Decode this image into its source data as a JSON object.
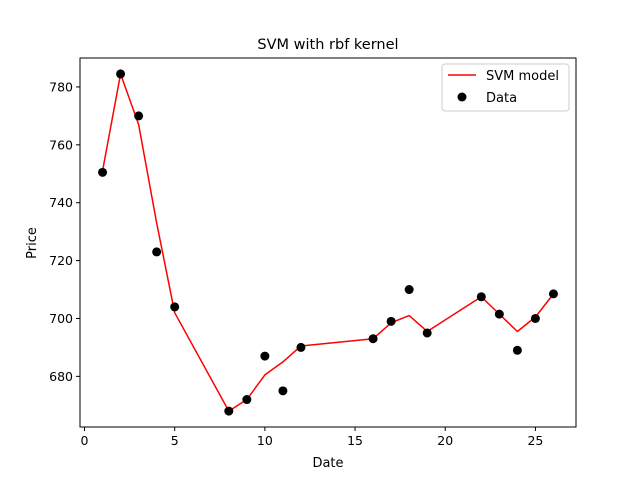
{
  "chart_data": {
    "type": "scatter+line",
    "title": "SVM with rbf kernel",
    "xlabel": "Date",
    "ylabel": "Price",
    "xlim": [
      -0.25,
      27.25
    ],
    "ylim": [
      662.5,
      790
    ],
    "xticks": [
      0,
      5,
      10,
      15,
      20,
      25
    ],
    "yticks": [
      680,
      700,
      720,
      740,
      760,
      780
    ],
    "grid": false,
    "legend_position": "top-right",
    "colors": {
      "model": "#ff0000",
      "data": "#000000"
    },
    "series": [
      {
        "name": "SVM model",
        "kind": "line",
        "x": [
          1,
          2,
          3,
          4,
          5,
          8,
          9,
          10,
          11,
          12,
          16,
          17,
          18,
          19,
          22,
          23,
          24,
          25,
          26
        ],
        "y": [
          751,
          784.5,
          767,
          733,
          702,
          668,
          672,
          680.5,
          685,
          690.5,
          693,
          698.5,
          701,
          695.5,
          707.5,
          701.5,
          695.5,
          700.5,
          708.5
        ]
      },
      {
        "name": "Data",
        "kind": "scatter",
        "x": [
          1,
          2,
          3,
          4,
          5,
          8,
          9,
          10,
          11,
          12,
          16,
          17,
          18,
          19,
          22,
          23,
          24,
          25,
          26
        ],
        "y": [
          750.5,
          784.5,
          770,
          723,
          704,
          668,
          672,
          687,
          675,
          690,
          693,
          699,
          710,
          695,
          707.5,
          701.5,
          689,
          700,
          708.5
        ]
      }
    ]
  }
}
